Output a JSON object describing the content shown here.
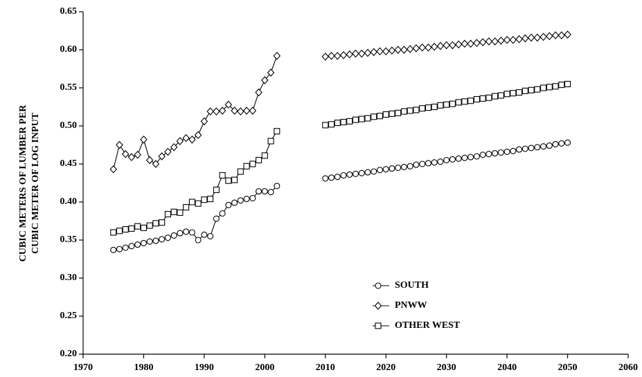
{
  "chart_data": {
    "type": "line",
    "ylabel": [
      "CUBIC METERS OF LUMBER PER",
      "CUBIC METER OF LOG INPUT"
    ],
    "x": [
      1975,
      1976,
      1977,
      1978,
      1979,
      1980,
      1981,
      1982,
      1983,
      1984,
      1985,
      1986,
      1987,
      1988,
      1989,
      1990,
      1991,
      1992,
      1993,
      1994,
      1995,
      1996,
      1997,
      1998,
      1999,
      2000,
      2001,
      2002,
      2003,
      2004,
      2005,
      2006,
      2007,
      2008,
      2009,
      2010,
      2011,
      2012,
      2013,
      2014,
      2015,
      2016,
      2017,
      2018,
      2019,
      2020,
      2021,
      2022,
      2023,
      2024,
      2025,
      2026,
      2027,
      2028,
      2029,
      2030,
      2031,
      2032,
      2033,
      2034,
      2035,
      2036,
      2037,
      2038,
      2039,
      2040,
      2041,
      2042,
      2043,
      2044,
      2045,
      2046,
      2047,
      2048,
      2049,
      2050
    ],
    "series": [
      {
        "name": "SOUTH",
        "color": "#000000",
        "marker": "circle",
        "values": [
          0.337,
          0.338,
          0.34,
          0.342,
          0.344,
          0.346,
          0.348,
          0.349,
          0.351,
          0.353,
          0.356,
          0.359,
          0.361,
          0.36,
          0.35,
          0.357,
          0.355,
          0.378,
          0.385,
          0.396,
          0.399,
          0.402,
          0.404,
          0.405,
          0.414,
          0.414,
          0.413,
          0.421,
          null,
          null,
          null,
          null,
          null,
          null,
          null,
          0.431,
          0.432,
          0.433,
          0.435,
          0.436,
          0.437,
          0.438,
          0.439,
          0.44,
          0.442,
          0.443,
          0.444,
          0.445,
          0.446,
          0.447,
          0.449,
          0.45,
          0.451,
          0.452,
          0.453,
          0.455,
          0.456,
          0.457,
          0.458,
          0.459,
          0.46,
          0.462,
          0.463,
          0.464,
          0.465,
          0.466,
          0.467,
          0.469,
          0.47,
          0.471,
          0.472,
          0.473,
          0.474,
          0.476,
          0.477,
          0.478
        ]
      },
      {
        "name": "PNWW",
        "color": "#000000",
        "marker": "diamond",
        "values": [
          0.443,
          0.475,
          0.463,
          0.459,
          0.462,
          0.482,
          0.455,
          0.45,
          0.46,
          0.466,
          0.472,
          0.48,
          0.484,
          0.482,
          0.488,
          0.506,
          0.519,
          0.519,
          0.52,
          0.528,
          0.52,
          0.519,
          0.52,
          0.52,
          0.544,
          0.56,
          0.57,
          0.592,
          null,
          null,
          null,
          null,
          null,
          null,
          null,
          0.591,
          0.592,
          0.592,
          0.593,
          0.594,
          0.595,
          0.595,
          0.596,
          0.597,
          0.598,
          0.598,
          0.599,
          0.6,
          0.6,
          0.601,
          0.602,
          0.603,
          0.603,
          0.604,
          0.605,
          0.606,
          0.606,
          0.607,
          0.608,
          0.608,
          0.609,
          0.61,
          0.611,
          0.611,
          0.612,
          0.613,
          0.613,
          0.614,
          0.615,
          0.616,
          0.616,
          0.617,
          0.618,
          0.619,
          0.619,
          0.62
        ]
      },
      {
        "name": "OTHER WEST",
        "color": "#000000",
        "marker": "square",
        "values": [
          0.36,
          0.362,
          0.364,
          0.365,
          0.368,
          0.366,
          0.369,
          0.372,
          0.373,
          0.384,
          0.387,
          0.386,
          0.393,
          0.4,
          0.398,
          0.403,
          0.404,
          0.416,
          0.435,
          0.428,
          0.429,
          0.44,
          0.447,
          0.45,
          0.455,
          0.461,
          0.48,
          0.493,
          null,
          null,
          null,
          null,
          null,
          null,
          null,
          0.501,
          0.502,
          0.504,
          0.505,
          0.506,
          0.508,
          0.509,
          0.51,
          0.512,
          0.513,
          0.515,
          0.516,
          0.517,
          0.519,
          0.52,
          0.521,
          0.523,
          0.524,
          0.525,
          0.527,
          0.528,
          0.529,
          0.531,
          0.532,
          0.533,
          0.535,
          0.536,
          0.537,
          0.539,
          0.54,
          0.542,
          0.543,
          0.544,
          0.546,
          0.547,
          0.548,
          0.55,
          0.551,
          0.552,
          0.554,
          0.555
        ]
      }
    ],
    "xlim": [
      1970,
      2060
    ],
    "xticks": [
      1970,
      1980,
      1990,
      2000,
      2010,
      2020,
      2030,
      2040,
      2050,
      2060
    ],
    "ylim": [
      0.2,
      0.65
    ],
    "yticks": [
      {
        "value": 0.2,
        "label": "0.20"
      },
      0.25,
      {
        "value": 0.3,
        "label": "0.30"
      },
      0.35,
      {
        "value": 0.4,
        "label": "0.40"
      },
      0.45,
      {
        "value": 0.5,
        "label": "0.50"
      },
      0.55,
      {
        "value": 0.6,
        "label": "0.60"
      },
      0.65
    ],
    "grid": false,
    "legend_position": "lower center"
  }
}
